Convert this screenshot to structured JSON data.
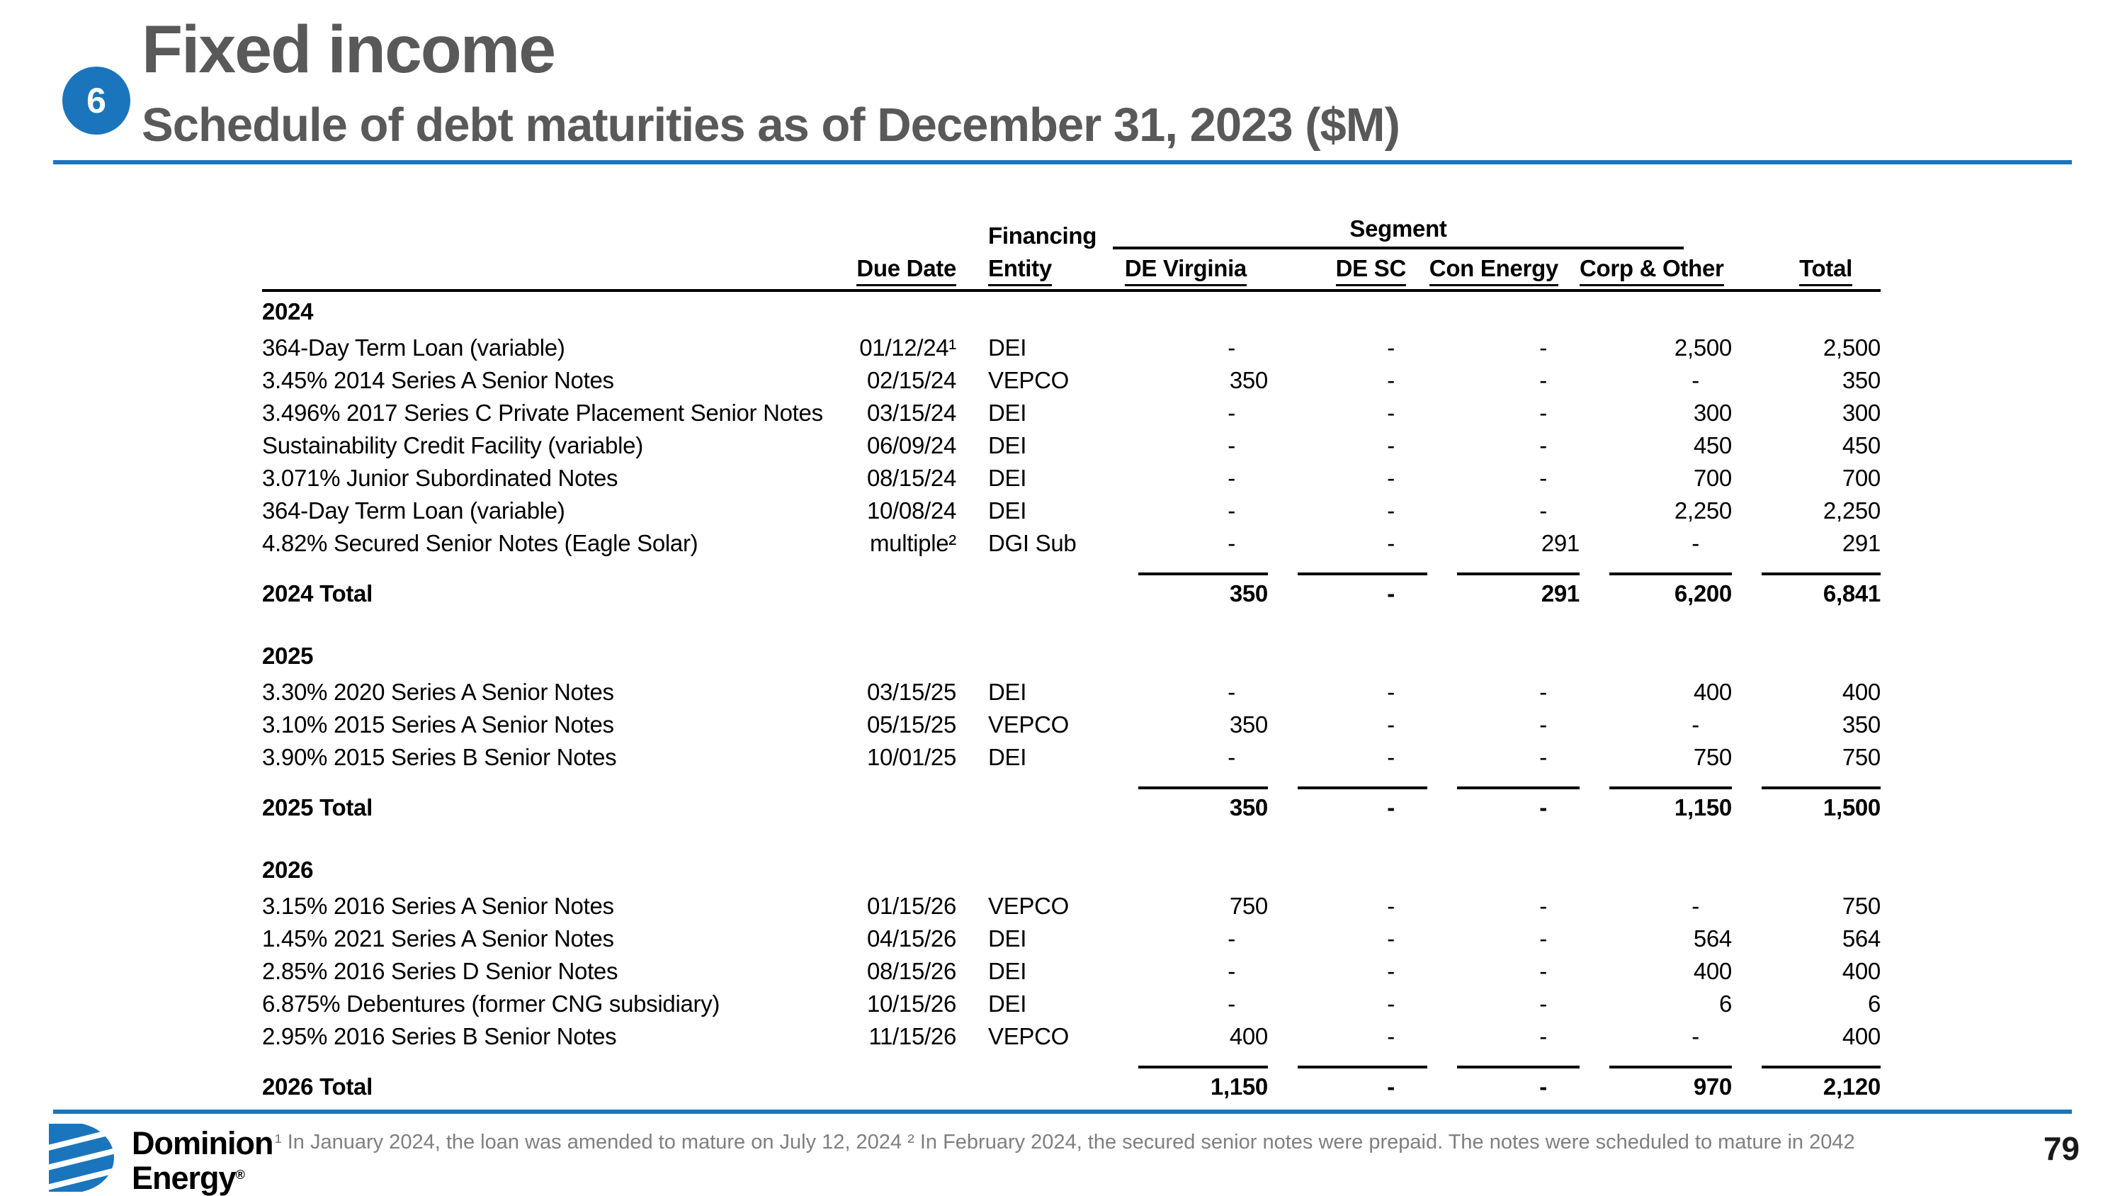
{
  "slide": {
    "badge": "6",
    "title": "Fixed income",
    "subtitle": "Schedule of debt maturities as of December 31, 2023 ($M)",
    "footnote": "¹ In January 2024, the loan was amended to mature on July 12, 2024  ² In February 2024, the secured senior notes were prepaid. The notes were scheduled to mature in 2042",
    "page_number": "79",
    "logo": {
      "line1": "Dominion",
      "line2": "Energy",
      "registered": "®"
    }
  },
  "colors": {
    "accent_blue": "#1B75BC",
    "title_gray": "#595959",
    "footnote_gray": "#7F7F7F",
    "text_black": "#000000"
  },
  "table": {
    "group_headers": {
      "financing": "Financing",
      "segment": "Segment"
    },
    "columns": [
      "Due Date",
      "Entity",
      "DE Virginia",
      "DE SC",
      "Con Energy",
      "Corp & Other",
      "Total"
    ],
    "sections": [
      {
        "label": "2024",
        "rows": [
          {
            "desc": "364-Day Term Loan (variable)",
            "due": "01/12/24¹",
            "entity": "DEI",
            "values": [
              "-",
              "-",
              "-",
              "2,500",
              "2,500"
            ]
          },
          {
            "desc": "3.45% 2014 Series A Senior Notes",
            "due": "02/15/24",
            "entity": "VEPCO",
            "values": [
              "350",
              "-",
              "-",
              "-",
              "350"
            ]
          },
          {
            "desc": "3.496% 2017 Series C Private Placement Senior Notes",
            "due": "03/15/24",
            "entity": "DEI",
            "values": [
              "-",
              "-",
              "-",
              "300",
              "300"
            ]
          },
          {
            "desc": "Sustainability Credit Facility (variable)",
            "due": "06/09/24",
            "entity": "DEI",
            "values": [
              "-",
              "-",
              "-",
              "450",
              "450"
            ]
          },
          {
            "desc": "3.071% Junior Subordinated Notes",
            "due": "08/15/24",
            "entity": "DEI",
            "values": [
              "-",
              "-",
              "-",
              "700",
              "700"
            ]
          },
          {
            "desc": "364-Day Term Loan (variable)",
            "due": "10/08/24",
            "entity": "DEI",
            "values": [
              "-",
              "-",
              "-",
              "2,250",
              "2,250"
            ]
          },
          {
            "desc": "4.82% Secured Senior Notes (Eagle Solar)",
            "due": "multiple²",
            "entity": "DGI Sub",
            "values": [
              "-",
              "-",
              "291",
              "-",
              "291"
            ]
          }
        ],
        "total": {
          "label": "2024 Total",
          "values": [
            "350",
            "-",
            "291",
            "6,200",
            "6,841"
          ]
        }
      },
      {
        "label": "2025",
        "rows": [
          {
            "desc": "3.30% 2020 Series A Senior Notes",
            "due": "03/15/25",
            "entity": "DEI",
            "values": [
              "-",
              "-",
              "-",
              "400",
              "400"
            ]
          },
          {
            "desc": "3.10% 2015 Series A Senior Notes",
            "due": "05/15/25",
            "entity": "VEPCO",
            "values": [
              "350",
              "-",
              "-",
              "-",
              "350"
            ]
          },
          {
            "desc": "3.90% 2015 Series B Senior Notes",
            "due": "10/01/25",
            "entity": "DEI",
            "values": [
              "-",
              "-",
              "-",
              "750",
              "750"
            ]
          }
        ],
        "total": {
          "label": "2025 Total",
          "values": [
            "350",
            "-",
            "-",
            "1,150",
            "1,500"
          ]
        }
      },
      {
        "label": "2026",
        "rows": [
          {
            "desc": "3.15% 2016 Series A Senior Notes",
            "due": "01/15/26",
            "entity": "VEPCO",
            "values": [
              "750",
              "-",
              "-",
              "-",
              "750"
            ]
          },
          {
            "desc": "1.45% 2021 Series A Senior Notes",
            "due": "04/15/26",
            "entity": "DEI",
            "values": [
              "-",
              "-",
              "-",
              "564",
              "564"
            ]
          },
          {
            "desc": "2.85% 2016 Series D Senior Notes",
            "due": "08/15/26",
            "entity": "DEI",
            "values": [
              "-",
              "-",
              "-",
              "400",
              "400"
            ]
          },
          {
            "desc": "6.875% Debentures (former CNG subsidiary)",
            "due": "10/15/26",
            "entity": "DEI",
            "values": [
              "-",
              "-",
              "-",
              "6",
              "6"
            ]
          },
          {
            "desc": "2.95% 2016 Series B Senior Notes",
            "due": "11/15/26",
            "entity": "VEPCO",
            "values": [
              "400",
              "-",
              "-",
              "-",
              "400"
            ]
          }
        ],
        "total": {
          "label": "2026 Total",
          "values": [
            "1,150",
            "-",
            "-",
            "970",
            "2,120"
          ]
        }
      }
    ]
  }
}
